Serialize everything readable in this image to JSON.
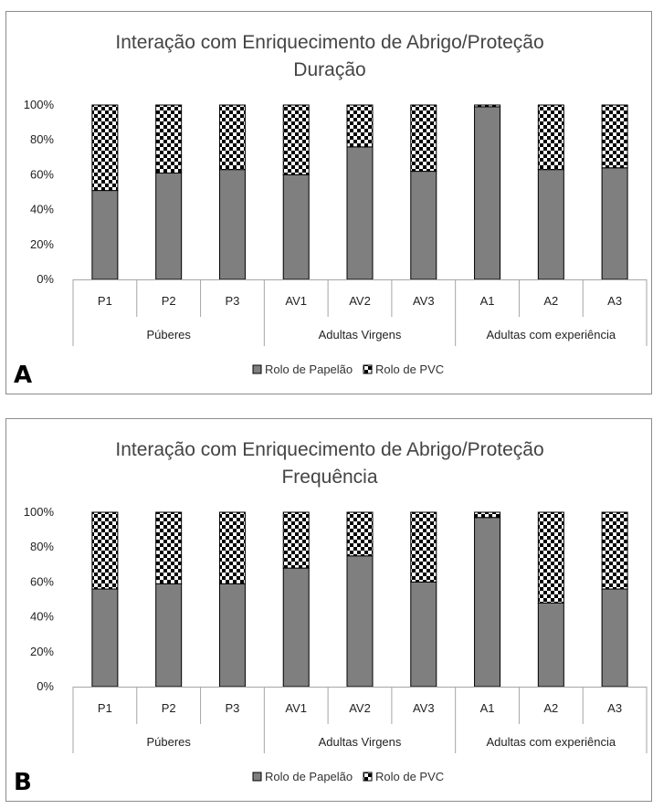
{
  "colors": {
    "papelao": "#7f7f7f",
    "axis": "#a6a6a6"
  },
  "chart_data": [
    {
      "type": "bar",
      "stacked": true,
      "panel_label": "A",
      "title": "Interação com Enriquecimento de Abrigo/Proteção",
      "subtitle": "Duração",
      "categories": [
        "P1",
        "P2",
        "P3",
        "AV1",
        "AV2",
        "AV3",
        "A1",
        "A2",
        "A3"
      ],
      "groups": [
        {
          "label": "Púberes",
          "start": 0,
          "count": 3
        },
        {
          "label": "Adultas Virgens",
          "start": 3,
          "count": 3
        },
        {
          "label": "Adultas com experiência",
          "start": 6,
          "count": 3
        }
      ],
      "series": [
        {
          "name": "Rolo de Papelão",
          "pattern": "solid",
          "values": [
            51,
            61,
            63,
            60,
            76,
            62,
            99,
            63,
            64
          ]
        },
        {
          "name": "Rolo de PVC",
          "pattern": "checker",
          "values": [
            49,
            39,
            37,
            40,
            24,
            38,
            1,
            37,
            36
          ]
        }
      ],
      "yticks": [
        "0%",
        "20%",
        "40%",
        "60%",
        "80%",
        "100%"
      ],
      "ylim": [
        0,
        100
      ],
      "legend_position": "bottom"
    },
    {
      "type": "bar",
      "stacked": true,
      "panel_label": "B",
      "title": "Interação com Enriquecimento de Abrigo/Proteção",
      "subtitle": "Frequência",
      "categories": [
        "P1",
        "P2",
        "P3",
        "AV1",
        "AV2",
        "AV3",
        "A1",
        "A2",
        "A3"
      ],
      "groups": [
        {
          "label": "Púberes",
          "start": 0,
          "count": 3
        },
        {
          "label": "Adultas Virgens",
          "start": 3,
          "count": 3
        },
        {
          "label": "Adultas com experiência",
          "start": 6,
          "count": 3
        }
      ],
      "series": [
        {
          "name": "Rolo de Papelão",
          "pattern": "solid",
          "values": [
            56,
            59,
            59,
            68,
            75,
            60,
            97,
            48,
            56
          ]
        },
        {
          "name": "Rolo de PVC",
          "pattern": "checker",
          "values": [
            44,
            41,
            41,
            32,
            25,
            40,
            3,
            52,
            44
          ]
        }
      ],
      "yticks": [
        "0%",
        "20%",
        "40%",
        "60%",
        "80%",
        "100%"
      ],
      "ylim": [
        0,
        100
      ],
      "legend_position": "bottom"
    }
  ]
}
